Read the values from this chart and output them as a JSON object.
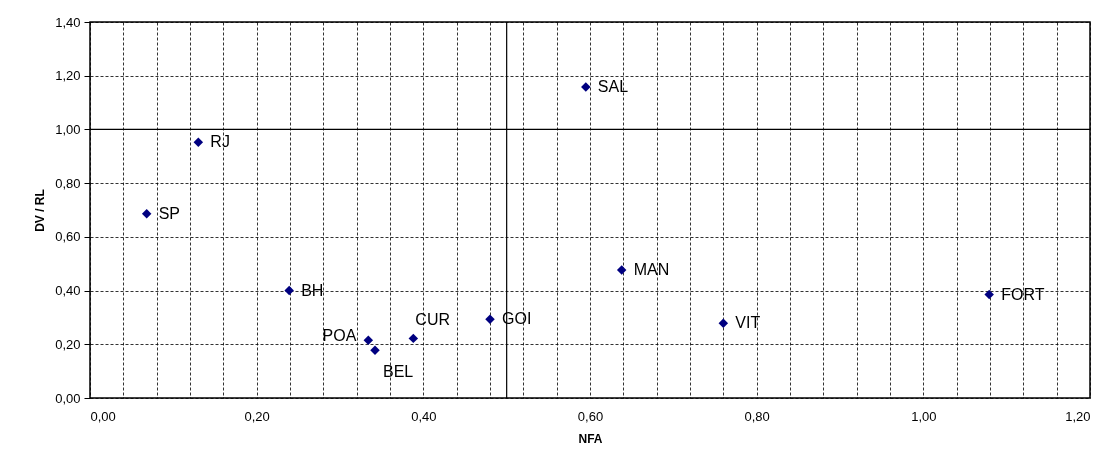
{
  "chart_data": {
    "type": "scatter",
    "xlabel": "NFA",
    "ylabel": "DV / RL",
    "series": [
      {
        "color": "#000080",
        "x": [
          0.068,
          0.13,
          0.239,
          0.334,
          0.342,
          0.388,
          0.48,
          0.595,
          0.638,
          0.76,
          1.079
        ],
        "values": [
          0.686,
          0.952,
          0.4,
          0.215,
          0.178,
          0.222,
          0.293,
          1.158,
          0.477,
          0.278,
          0.385
        ]
      }
    ],
    "marker": "diamond",
    "grid": true,
    "xlim": [
      0,
      1.2
    ],
    "ylim": [
      0,
      1.4
    ],
    "xticks": [
      {
        "value": 0,
        "label": "0,00"
      },
      {
        "value": 0.04,
        "label": null
      },
      {
        "value": 0.08,
        "label": null
      },
      {
        "value": 0.12,
        "label": null
      },
      {
        "value": 0.16,
        "label": null
      },
      {
        "value": 0.2,
        "label": "0,20"
      },
      {
        "value": 0.24,
        "label": null
      },
      {
        "value": 0.28,
        "label": null
      },
      {
        "value": 0.32,
        "label": null
      },
      {
        "value": 0.36,
        "label": null
      },
      {
        "value": 0.4,
        "label": "0,40"
      },
      {
        "value": 0.44,
        "label": null
      },
      {
        "value": 0.48,
        "label": null
      },
      {
        "value": 0.52,
        "label": null
      },
      {
        "value": 0.56,
        "label": null
      },
      {
        "value": 0.6,
        "label": "0,60"
      },
      {
        "value": 0.64,
        "label": null
      },
      {
        "value": 0.68,
        "label": null
      },
      {
        "value": 0.72,
        "label": null
      },
      {
        "value": 0.76,
        "label": null
      },
      {
        "value": 0.8,
        "label": "0,80"
      },
      {
        "value": 0.84,
        "label": null
      },
      {
        "value": 0.88,
        "label": null
      },
      {
        "value": 0.92,
        "label": null
      },
      {
        "value": 0.96,
        "label": null
      },
      {
        "value": 1.0,
        "label": "1,00"
      },
      {
        "value": 1.04,
        "label": null
      },
      {
        "value": 1.08,
        "label": null
      },
      {
        "value": 1.12,
        "label": null
      },
      {
        "value": 1.16,
        "label": null
      },
      {
        "value": 1.2,
        "label": "1,20"
      }
    ],
    "yticks": [
      {
        "value": 0,
        "label": "0,00"
      },
      {
        "value": 0.2,
        "label": "0,20"
      },
      {
        "value": 0.4,
        "label": "0,40"
      },
      {
        "value": 0.6,
        "label": "0,60"
      },
      {
        "value": 0.8,
        "label": "0,80"
      },
      {
        "value": 1.0,
        "label": "1,00"
      },
      {
        "value": 1.2,
        "label": "1,20"
      },
      {
        "value": 1.4,
        "label": "1,40"
      }
    ],
    "ref_lines": [
      {
        "axis": "x",
        "value": 0.5,
        "color": "#000000",
        "line_style": "solid"
      },
      {
        "axis": "y",
        "value": 1.0,
        "color": "#000000",
        "line_style": "solid"
      }
    ],
    "annotations": [
      {
        "text": "SP",
        "x": 0.068,
        "y": 0.686
      },
      {
        "text": "RJ",
        "x": 0.13,
        "y": 0.952
      },
      {
        "text": "BH",
        "x": 0.239,
        "y": 0.4
      },
      {
        "text": "POA",
        "x": 0.334,
        "y": 0.215
      },
      {
        "text": "BEL",
        "x": 0.342,
        "y": 0.178
      },
      {
        "text": "CUR",
        "x": 0.388,
        "y": 0.222
      },
      {
        "text": "GOI",
        "x": 0.48,
        "y": 0.293
      },
      {
        "text": "SAL",
        "x": 0.595,
        "y": 1.158
      },
      {
        "text": "MAN",
        "x": 0.638,
        "y": 0.477
      },
      {
        "text": "VIT",
        "x": 0.76,
        "y": 0.278
      },
      {
        "text": "FORT",
        "x": 1.079,
        "y": 0.385
      }
    ]
  }
}
